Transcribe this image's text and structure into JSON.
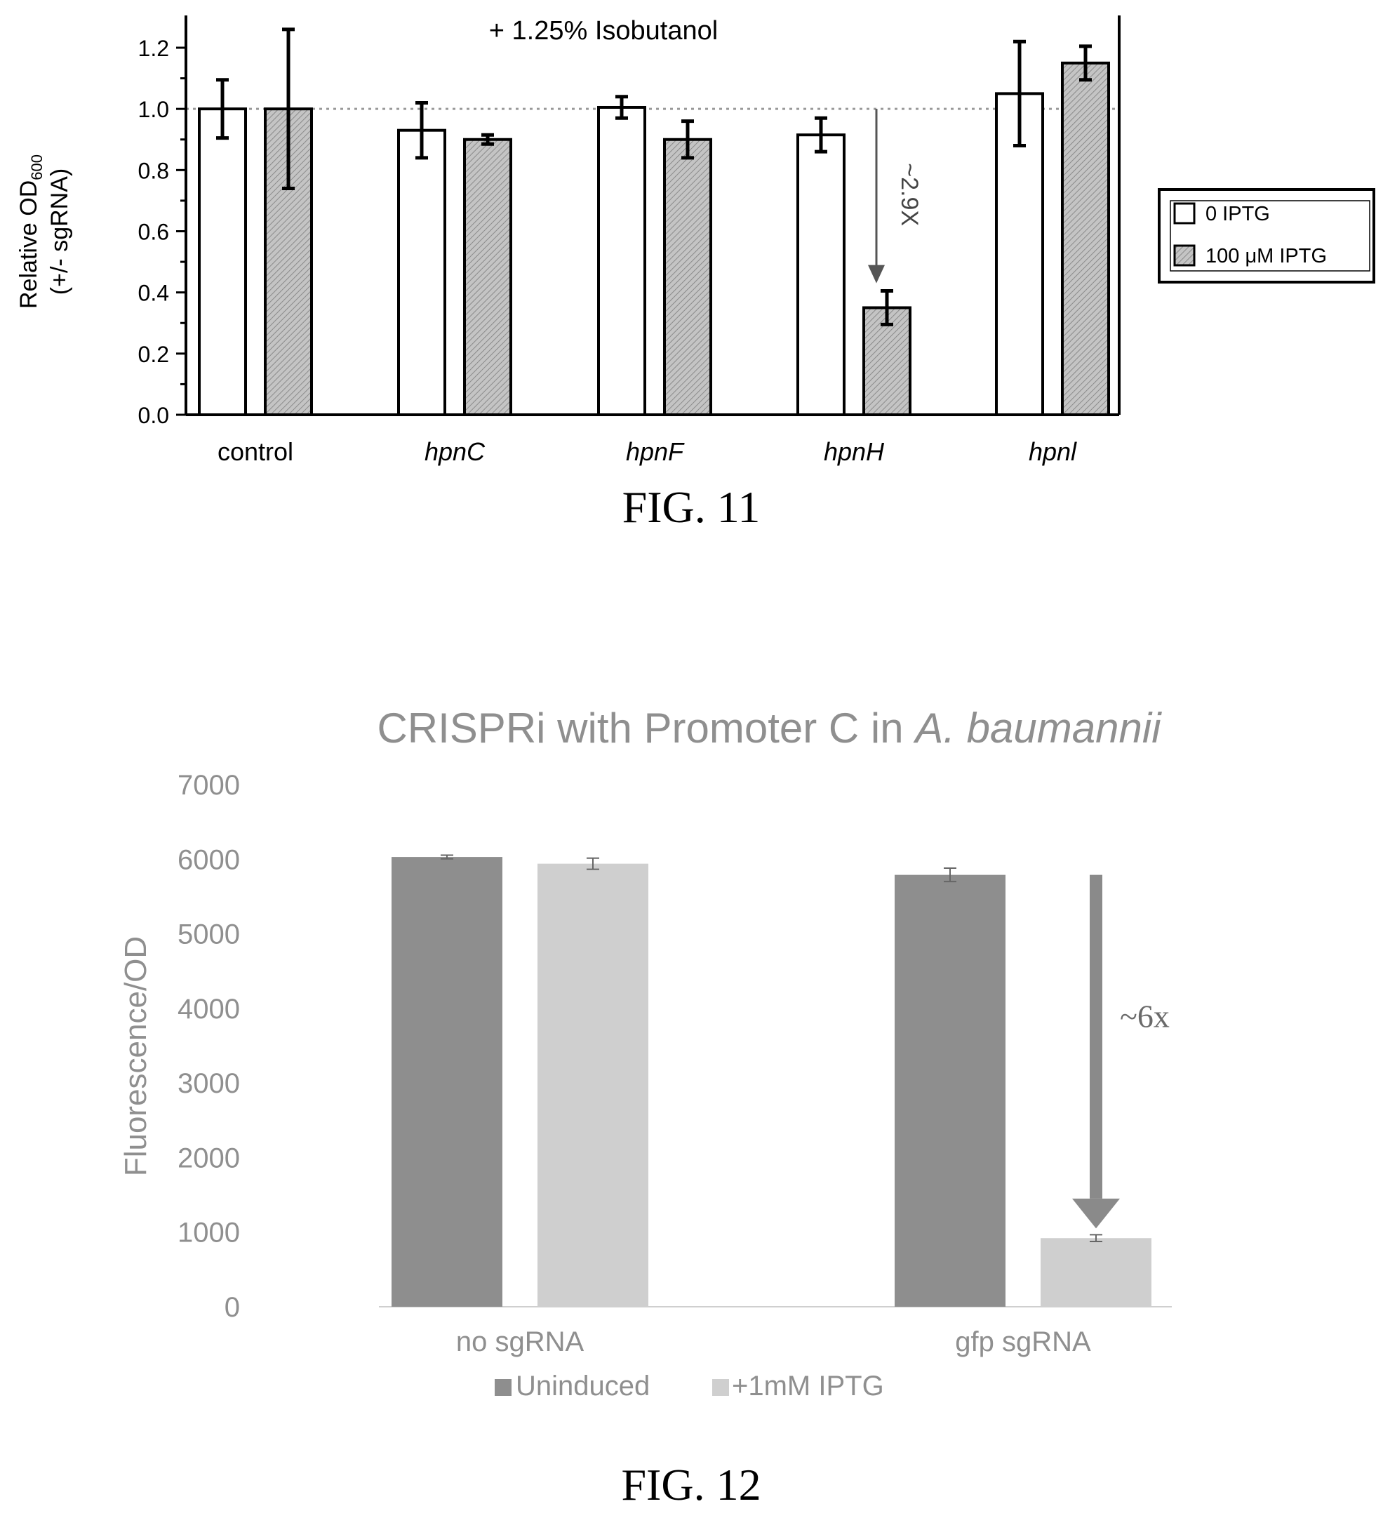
{
  "figures": [
    {
      "caption": "FIG. 11"
    },
    {
      "caption": "FIG. 12"
    }
  ],
  "chart_data": [
    {
      "type": "bar",
      "title": "",
      "annotation_top": "+ 1.25% Isobutanol",
      "ylabel_line1": "Relative OD",
      "ylabel_sub": "600",
      "ylabel_line2": "(+/- sgRNA)",
      "ylim": [
        0,
        1.3
      ],
      "yticks": [
        "0.0",
        "0.2",
        "0.4",
        "0.6",
        "0.8",
        "1.0",
        "1.2"
      ],
      "yticks_values": [
        0,
        0.2,
        0.4,
        0.6,
        0.8,
        1.0,
        1.2
      ],
      "reference_line": 1.0,
      "categories": [
        "control",
        "hpnC",
        "hpnF",
        "hpnH",
        "hpnI"
      ],
      "categories_display": [
        "control",
        "hpnC",
        "hpnF",
        "hpnH",
        "hpnl"
      ],
      "categories_italic": [
        false,
        true,
        true,
        true,
        true
      ],
      "series": [
        {
          "name": "0 IPTG",
          "values": [
            1.0,
            0.93,
            1.005,
            0.915,
            1.05
          ],
          "errors": [
            0.095,
            0.09,
            0.035,
            0.055,
            0.17
          ],
          "color": "#ffffff"
        },
        {
          "name": "100 μM IPTG",
          "values": [
            1.0,
            0.9,
            0.9,
            0.35,
            1.15
          ],
          "errors": [
            0.26,
            0.015,
            0.06,
            0.055,
            0.055
          ],
          "color": "#b8b8b8"
        }
      ],
      "arrow_label": "~2.9X",
      "legend_position": "right"
    },
    {
      "type": "bar",
      "title_prefix": "CRISPRi with Promoter C in ",
      "title_italic": "A. baumannii",
      "ylabel": "Fluorescence/OD",
      "ylim": [
        0,
        7000
      ],
      "yticks": [
        "0",
        "1000",
        "2000",
        "3000",
        "4000",
        "5000",
        "6000",
        "7000"
      ],
      "yticks_values": [
        0,
        1000,
        2000,
        3000,
        4000,
        5000,
        6000,
        7000
      ],
      "categories": [
        "no sgRNA",
        "gfp sgRNA"
      ],
      "series": [
        {
          "name": "Uninduced",
          "values": [
            6030,
            5790
          ],
          "errors": [
            25,
            90
          ],
          "color": "#8e8e8e"
        },
        {
          "name": "+1mM IPTG",
          "values": [
            5940,
            920
          ],
          "errors": [
            75,
            45
          ],
          "color": "#cfcfcf"
        }
      ],
      "arrow_label": "~6x",
      "legend_position": "bottom"
    }
  ]
}
